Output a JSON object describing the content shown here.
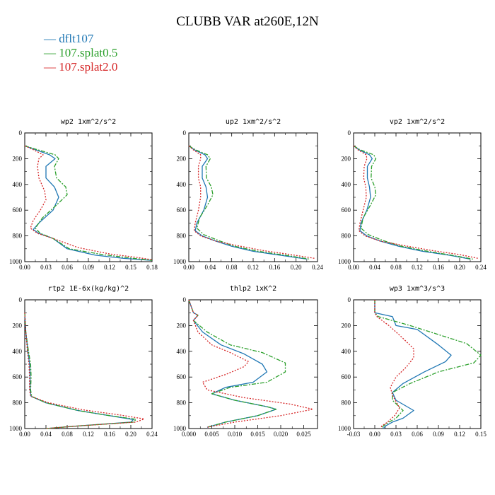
{
  "title": "CLUBB VAR at260E,12N",
  "legend": [
    {
      "label": "dflt107",
      "color": "#1f77b4",
      "dash": ""
    },
    {
      "label": "107.splat0.5",
      "color": "#2ca02c",
      "dash": "6,2,2,2"
    },
    {
      "label": "107.splat2.0",
      "color": "#d62728",
      "dash": "2,2"
    }
  ],
  "chart_data": [
    {
      "type": "line",
      "title": "wp2  1xm^2/s^2",
      "xlim": [
        0,
        0.18
      ],
      "xticks": [
        0.0,
        0.03,
        0.06,
        0.09,
        0.12,
        0.15,
        0.18
      ],
      "xtick_labels": [
        "0.00",
        "0.03",
        "0.06",
        "0.09",
        "0.12",
        "0.15",
        "0.18"
      ],
      "ylim": [
        0,
        1000
      ],
      "yticks": [
        0,
        200,
        400,
        600,
        800,
        1000
      ],
      "series": [
        {
          "name": "dflt107",
          "x": [
            0.0,
            0.015,
            0.035,
            0.043,
            0.03,
            0.03,
            0.042,
            0.048,
            0.04,
            0.02,
            0.012,
            0.02,
            0.04,
            0.06,
            0.1,
            0.14,
            0.18
          ],
          "y": [
            100,
            130,
            170,
            200,
            260,
            350,
            420,
            500,
            600,
            700,
            750,
            780,
            820,
            900,
            950,
            975,
            990
          ]
        },
        {
          "name": "107.splat0.5",
          "x": [
            0.0,
            0.018,
            0.043,
            0.048,
            0.042,
            0.045,
            0.058,
            0.06,
            0.045,
            0.025,
            0.015,
            0.022,
            0.04,
            0.063,
            0.11,
            0.15,
            0.18
          ],
          "y": [
            100,
            130,
            170,
            200,
            260,
            350,
            420,
            480,
            560,
            660,
            740,
            780,
            820,
            900,
            945,
            972,
            990
          ]
        },
        {
          "name": "107.splat2.0",
          "x": [
            0.0,
            0.012,
            0.026,
            0.02,
            0.018,
            0.02,
            0.028,
            0.03,
            0.022,
            0.012,
            0.008,
            0.018,
            0.04,
            0.075,
            0.12,
            0.16,
            0.18
          ],
          "y": [
            100,
            130,
            170,
            200,
            260,
            350,
            450,
            520,
            600,
            680,
            740,
            780,
            820,
            890,
            940,
            968,
            985
          ]
        }
      ]
    },
    {
      "type": "line",
      "title": "up2  1xm^2/s^2",
      "xlim": [
        0,
        0.24
      ],
      "xticks": [
        0.0,
        0.04,
        0.08,
        0.12,
        0.16,
        0.2,
        0.24
      ],
      "xtick_labels": [
        "0.00",
        "0.04",
        "0.08",
        "0.12",
        "0.16",
        "0.20",
        "0.24"
      ],
      "ylim": [
        0,
        1000
      ],
      "yticks": [
        0,
        200,
        400,
        600,
        800,
        1000
      ],
      "series": [
        {
          "name": "dflt107",
          "x": [
            0.0,
            0.01,
            0.03,
            0.035,
            0.025,
            0.025,
            0.032,
            0.035,
            0.028,
            0.015,
            0.012,
            0.025,
            0.05,
            0.08,
            0.12,
            0.17,
            0.22
          ],
          "y": [
            100,
            130,
            170,
            200,
            260,
            350,
            420,
            500,
            600,
            700,
            760,
            800,
            840,
            880,
            920,
            950,
            980
          ]
        },
        {
          "name": "107.splat0.5",
          "x": [
            0.0,
            0.012,
            0.035,
            0.04,
            0.032,
            0.033,
            0.042,
            0.045,
            0.035,
            0.02,
            0.015,
            0.028,
            0.055,
            0.085,
            0.13,
            0.18,
            0.225
          ],
          "y": [
            100,
            130,
            170,
            200,
            260,
            350,
            420,
            480,
            560,
            660,
            740,
            790,
            835,
            880,
            920,
            950,
            980
          ]
        },
        {
          "name": "107.splat2.0",
          "x": [
            0.0,
            0.008,
            0.022,
            0.022,
            0.018,
            0.018,
            0.022,
            0.022,
            0.018,
            0.012,
            0.01,
            0.022,
            0.05,
            0.09,
            0.14,
            0.19,
            0.235
          ],
          "y": [
            100,
            130,
            170,
            200,
            260,
            350,
            420,
            500,
            600,
            700,
            760,
            800,
            840,
            875,
            915,
            945,
            975
          ]
        }
      ]
    },
    {
      "type": "line",
      "title": "vp2  1xm^2/s^2",
      "xlim": [
        0,
        0.24
      ],
      "xticks": [
        0.0,
        0.04,
        0.08,
        0.12,
        0.16,
        0.2,
        0.24
      ],
      "xtick_labels": [
        "0.00",
        "0.04",
        "0.08",
        "0.12",
        "0.16",
        "0.20",
        "0.24"
      ],
      "ylim": [
        0,
        1000
      ],
      "yticks": [
        0,
        200,
        400,
        600,
        800,
        1000
      ],
      "series": [
        {
          "name": "dflt107",
          "x": [
            0.0,
            0.01,
            0.03,
            0.035,
            0.026,
            0.026,
            0.03,
            0.032,
            0.025,
            0.014,
            0.012,
            0.025,
            0.05,
            0.085,
            0.13,
            0.18,
            0.22
          ],
          "y": [
            100,
            130,
            170,
            200,
            260,
            350,
            420,
            500,
            600,
            700,
            760,
            800,
            840,
            880,
            920,
            950,
            980
          ]
        },
        {
          "name": "107.splat0.5",
          "x": [
            0.0,
            0.012,
            0.038,
            0.042,
            0.034,
            0.033,
            0.04,
            0.042,
            0.032,
            0.018,
            0.014,
            0.028,
            0.055,
            0.09,
            0.14,
            0.185,
            0.225
          ],
          "y": [
            100,
            130,
            170,
            200,
            260,
            350,
            420,
            480,
            560,
            660,
            740,
            790,
            835,
            880,
            920,
            950,
            980
          ]
        },
        {
          "name": "107.splat2.0",
          "x": [
            0.0,
            0.008,
            0.024,
            0.025,
            0.02,
            0.019,
            0.023,
            0.024,
            0.018,
            0.012,
            0.01,
            0.022,
            0.05,
            0.095,
            0.15,
            0.2,
            0.235
          ],
          "y": [
            100,
            130,
            170,
            200,
            260,
            350,
            420,
            500,
            600,
            700,
            760,
            800,
            840,
            875,
            915,
            945,
            975
          ]
        }
      ]
    },
    {
      "type": "line",
      "title": "rtp2  1E-6x(kg/kg)^2",
      "xlim": [
        0,
        0.24
      ],
      "xticks": [
        0.0,
        0.04,
        0.08,
        0.12,
        0.16,
        0.2,
        0.24
      ],
      "xtick_labels": [
        "0.00",
        "0.04",
        "0.08",
        "0.12",
        "0.16",
        "0.20",
        "0.24"
      ],
      "ylim": [
        0,
        1000
      ],
      "yticks": [
        0,
        200,
        400,
        600,
        800,
        1000
      ],
      "series": [
        {
          "name": "dflt107",
          "x": [
            0.0,
            0.002,
            0.006,
            0.009,
            0.01,
            0.01,
            0.012,
            0.04,
            0.1,
            0.16,
            0.205,
            0.2,
            0.1,
            0.04
          ],
          "y": [
            100,
            250,
            400,
            500,
            600,
            700,
            750,
            800,
            860,
            900,
            930,
            950,
            980,
            1000
          ]
        },
        {
          "name": "107.splat0.5",
          "x": [
            0.0,
            0.002,
            0.007,
            0.011,
            0.012,
            0.011,
            0.013,
            0.04,
            0.1,
            0.16,
            0.21,
            0.205,
            0.1,
            0.04
          ],
          "y": [
            100,
            250,
            400,
            500,
            600,
            700,
            750,
            800,
            860,
            900,
            928,
            950,
            980,
            1000
          ]
        },
        {
          "name": "107.splat2.0",
          "x": [
            0.0,
            0.002,
            0.005,
            0.008,
            0.009,
            0.009,
            0.011,
            0.045,
            0.11,
            0.18,
            0.225,
            0.21,
            0.1,
            0.04
          ],
          "y": [
            100,
            250,
            400,
            500,
            600,
            700,
            750,
            800,
            855,
            895,
            925,
            950,
            980,
            1000
          ]
        }
      ]
    },
    {
      "type": "line",
      "title": "thlp2  1xK^2",
      "xlim": [
        0,
        0.028
      ],
      "xticks": [
        0.0,
        0.005,
        0.01,
        0.015,
        0.02,
        0.025
      ],
      "xtick_labels": [
        "0.000",
        "0.005",
        "0.010",
        "0.015",
        "0.020",
        "0.025"
      ],
      "ylim": [
        0,
        1000
      ],
      "yticks": [
        0,
        200,
        400,
        600,
        800,
        1000
      ],
      "series": [
        {
          "name": "dflt107",
          "x": [
            0.0,
            0.001,
            0.002,
            0.001,
            0.003,
            0.007,
            0.012,
            0.016,
            0.017,
            0.014,
            0.008,
            0.005,
            0.01,
            0.017,
            0.019,
            0.015,
            0.008,
            0.004
          ],
          "y": [
            0,
            100,
            120,
            160,
            250,
            350,
            420,
            500,
            560,
            640,
            680,
            730,
            780,
            830,
            850,
            900,
            950,
            990
          ]
        },
        {
          "name": "107.splat0.5",
          "x": [
            0.0,
            0.001,
            0.002,
            0.001,
            0.004,
            0.009,
            0.016,
            0.021,
            0.021,
            0.017,
            0.009,
            0.005,
            0.01,
            0.017,
            0.019,
            0.015,
            0.008,
            0.004
          ],
          "y": [
            0,
            100,
            120,
            160,
            250,
            350,
            410,
            490,
            560,
            640,
            680,
            730,
            780,
            830,
            850,
            900,
            950,
            990
          ]
        },
        {
          "name": "107.splat2.0",
          "x": [
            0.0,
            0.001,
            0.002,
            0.001,
            0.002,
            0.005,
            0.009,
            0.013,
            0.012,
            0.008,
            0.003,
            0.004,
            0.012,
            0.022,
            0.027,
            0.02,
            0.01,
            0.004
          ],
          "y": [
            0,
            100,
            120,
            160,
            250,
            350,
            410,
            480,
            520,
            580,
            640,
            700,
            760,
            810,
            850,
            900,
            950,
            990
          ]
        }
      ]
    },
    {
      "type": "line",
      "title": "wp3  1xm^3/s^3",
      "xlim": [
        -0.03,
        0.15
      ],
      "xticks": [
        -0.03,
        0.0,
        0.03,
        0.06,
        0.09,
        0.12,
        0.15
      ],
      "xtick_labels": [
        "-0.03",
        "0.00",
        "0.03",
        "0.06",
        "0.09",
        "0.12",
        "0.15"
      ],
      "ylim": [
        0,
        1000
      ],
      "yticks": [
        0,
        200,
        400,
        600,
        800,
        1000
      ],
      "series": [
        {
          "name": "dflt107",
          "x": [
            0.0,
            0.0,
            0.025,
            0.03,
            0.06,
            0.09,
            0.108,
            0.1,
            0.07,
            0.04,
            0.025,
            0.03,
            0.055,
            0.04,
            0.025,
            0.015,
            0.012
          ],
          "y": [
            0,
            100,
            130,
            200,
            230,
            350,
            430,
            480,
            560,
            650,
            720,
            780,
            860,
            920,
            950,
            980,
            1000
          ]
        },
        {
          "name": "107.splat0.5",
          "x": [
            0.0,
            0.0,
            0.005,
            0.05,
            0.09,
            0.13,
            0.15,
            0.14,
            0.09,
            0.05,
            0.025,
            0.025,
            0.04,
            0.03,
            0.02,
            0.012,
            0.01
          ],
          "y": [
            0,
            100,
            130,
            200,
            270,
            340,
            430,
            490,
            560,
            650,
            720,
            780,
            860,
            920,
            950,
            980,
            1000
          ]
        },
        {
          "name": "107.splat2.0",
          "x": [
            0.0,
            0.0,
            0.003,
            0.02,
            0.04,
            0.055,
            0.055,
            0.045,
            0.03,
            0.022,
            0.025,
            0.03,
            0.035,
            0.028,
            0.018,
            0.01,
            0.008
          ],
          "y": [
            0,
            100,
            130,
            200,
            300,
            380,
            450,
            520,
            600,
            680,
            740,
            790,
            840,
            900,
            950,
            980,
            1000
          ]
        }
      ]
    }
  ]
}
